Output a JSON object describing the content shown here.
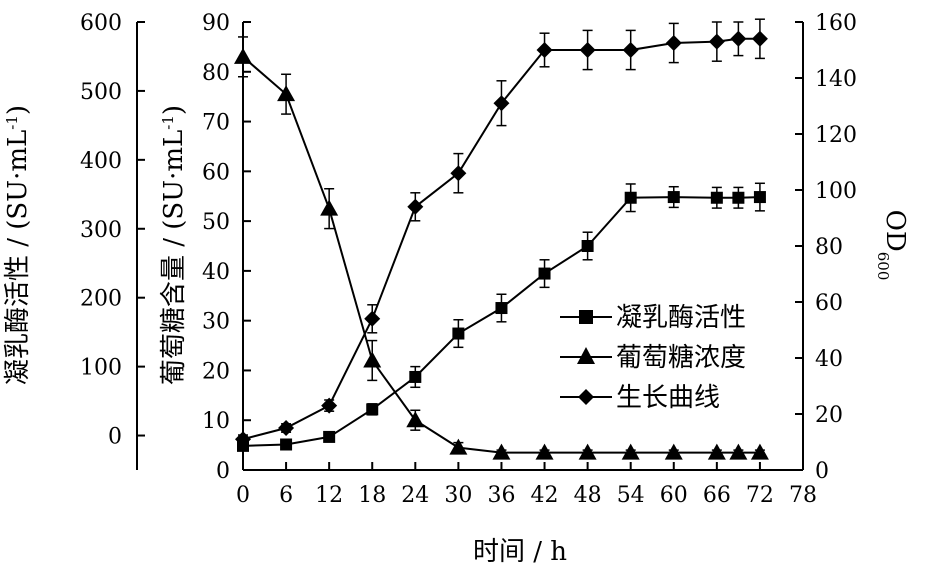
{
  "chart_data": {
    "type": "line",
    "xlabel": "时间 / h",
    "x_ticks": [
      0,
      6,
      12,
      18,
      24,
      30,
      36,
      42,
      48,
      54,
      60,
      66,
      72,
      78
    ],
    "xlim": [
      0,
      78
    ],
    "grid": false,
    "legend_position": "right-middle",
    "axes": {
      "activity": {
        "label_main": "凝乳酶活性 / (SU·mL",
        "label_sup": "-1",
        "label_close": ")",
        "ylim": [
          -50,
          600
        ],
        "ticks": [
          0,
          100,
          200,
          300,
          400,
          500,
          600
        ]
      },
      "glucose": {
        "label_main": "葡萄糖含量 / (SU·mL",
        "label_sup": "-1",
        "label_close": ")",
        "ylim": [
          0,
          90
        ],
        "ticks": [
          0,
          10,
          20,
          30,
          40,
          50,
          60,
          70,
          80,
          90
        ]
      },
      "od": {
        "label_main": "OD",
        "label_sub": "600",
        "ylim": [
          0,
          160
        ],
        "ticks": [
          0,
          20,
          40,
          60,
          80,
          100,
          120,
          140,
          160
        ]
      }
    },
    "series": [
      {
        "name": "凝乳酶活性",
        "marker": "square",
        "axis": "activity",
        "x": [
          0,
          6,
          12,
          18,
          24,
          30,
          36,
          42,
          48,
          54,
          60,
          66,
          69,
          72
        ],
        "y": [
          -15,
          -13,
          -2,
          38,
          85,
          148,
          185,
          235,
          275,
          345,
          346,
          345,
          345,
          346
        ],
        "err": [
          3,
          3,
          5,
          8,
          15,
          20,
          20,
          20,
          20,
          20,
          15,
          15,
          15,
          20
        ]
      },
      {
        "name": "葡萄糖浓度",
        "marker": "triangle",
        "axis": "glucose",
        "x": [
          0,
          6,
          12,
          18,
          24,
          30,
          36,
          42,
          48,
          54,
          60,
          66,
          69,
          72
        ],
        "y": [
          83,
          75.5,
          52.5,
          22,
          10,
          4.5,
          3.5,
          3.5,
          3.5,
          3.5,
          3.5,
          3.5,
          3.5,
          3.5
        ],
        "err": [
          4,
          4,
          4,
          4,
          2,
          1,
          0.5,
          0.5,
          0.5,
          0.5,
          0.5,
          0.5,
          0.5,
          0.5
        ]
      },
      {
        "name": "生长曲线",
        "marker": "diamond",
        "axis": "od",
        "x": [
          0,
          6,
          12,
          18,
          24,
          30,
          36,
          42,
          48,
          54,
          60,
          66,
          69,
          72
        ],
        "y": [
          11,
          15,
          23,
          54,
          94,
          106,
          131,
          150,
          150,
          150,
          152.5,
          153,
          154,
          154
        ],
        "err": [
          1.5,
          1.5,
          2,
          5,
          5,
          7,
          8,
          6,
          7,
          7,
          7,
          7,
          6,
          7
        ]
      }
    ]
  }
}
